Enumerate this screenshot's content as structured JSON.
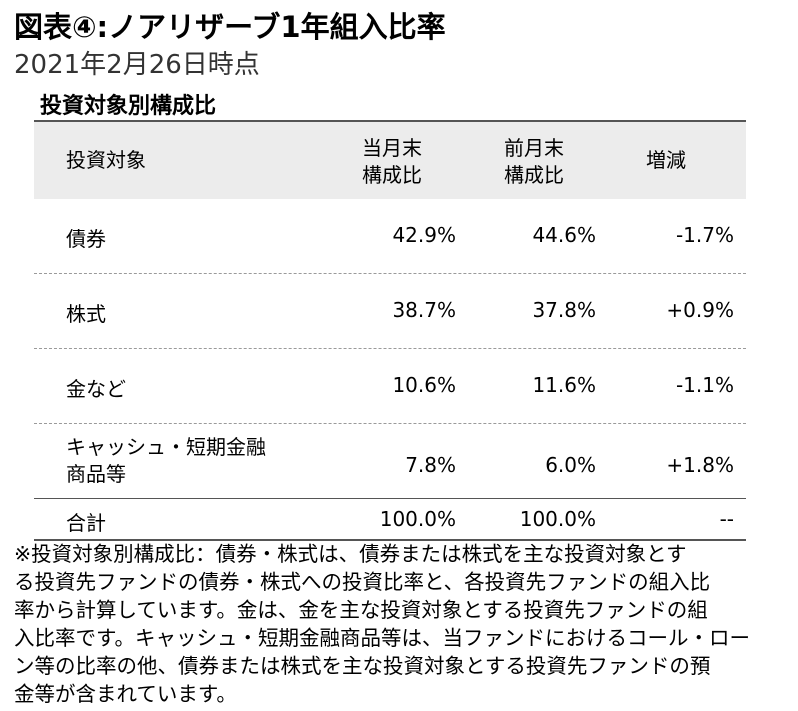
{
  "header": {
    "title": "図表④:ノアリザーブ1年組入比率",
    "date": "2021年2月26日時点"
  },
  "section_title": "投資対象別構成比",
  "table": {
    "columns": {
      "col1": "投資対象",
      "col2_line1": "当月末",
      "col2_line2": "構成比",
      "col3_line1": "前月末",
      "col3_line2": "構成比",
      "col4": "増減"
    },
    "rows": [
      {
        "label": "債券",
        "current": "42.9%",
        "previous": "44.6%",
        "change": "-1.7%"
      },
      {
        "label": "株式",
        "current": "38.7%",
        "previous": "37.8%",
        "change": "+0.9%"
      },
      {
        "label": "金など",
        "current": "10.6%",
        "previous": "11.6%",
        "change": "-1.1%"
      },
      {
        "label_line1": "キャッシュ・短期金融",
        "label_line2": "商品等",
        "current": "7.8%",
        "previous": "6.0%",
        "change": "+1.8%"
      }
    ],
    "total": {
      "label": "合計",
      "current": "100.0%",
      "previous": "100.0%",
      "change": "--"
    }
  },
  "note": {
    "lines": [
      "※投資対象別構成比：債券・株式は、債券または株式を主な投資対象とす",
      "る投資先ファンドの債券・株式への投資比率と、各投資先ファンドの組入比",
      "率から計算しています。金は、金を主な投資対象とする投資先ファンドの組",
      "入比率です。キャッシュ・短期金融商品等は、当ファンドにおけるコール・ロー",
      "ン等の比率の他、債券または株式を主な投資対象とする投資先ファンドの預",
      "金等が含まれています。"
    ]
  }
}
